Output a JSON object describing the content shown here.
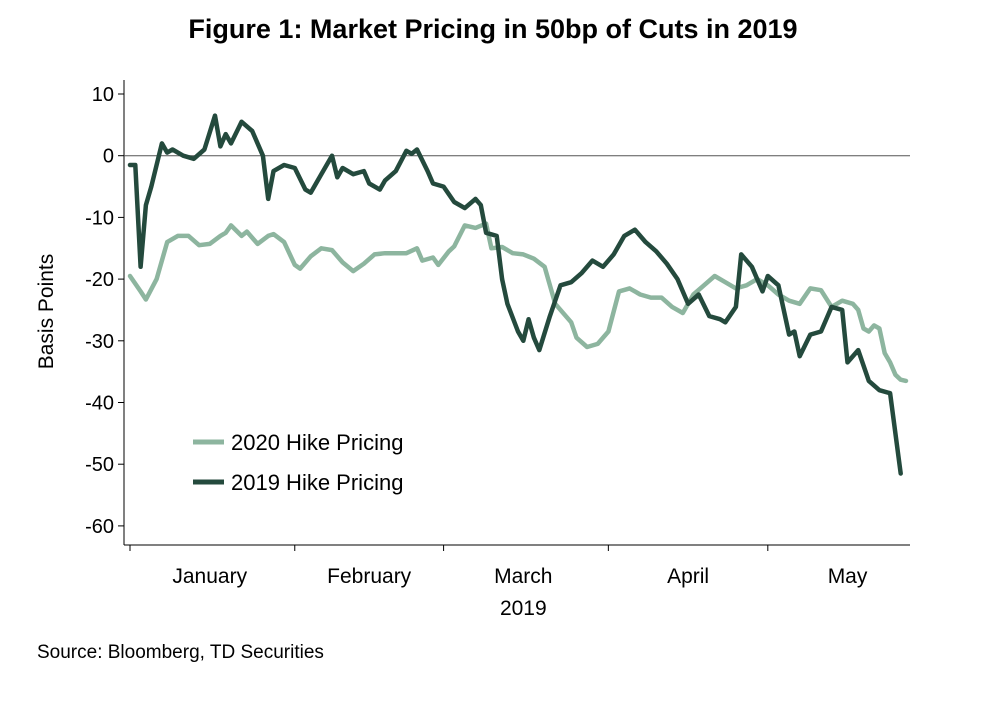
{
  "chart_data": {
    "type": "line",
    "title": "Figure 1: Market Pricing in 50bp of Cuts in 2019",
    "ylabel": "Basis Points",
    "xlabel": "2019",
    "ylim": [
      -62,
      12
    ],
    "yticks": [
      10,
      0,
      -10,
      -20,
      -30,
      -40,
      -50,
      -60
    ],
    "xlim": [
      "2019-01-01",
      "2019-05-27"
    ],
    "x_tick_dates": [
      "2019-01-01",
      "2019-02-01",
      "2019-03-01",
      "2019-04-01",
      "2019-05-01"
    ],
    "month_labels": [
      {
        "label": "January",
        "date": "2019-01-16"
      },
      {
        "label": "February",
        "date": "2019-02-15"
      },
      {
        "label": "March",
        "date": "2019-03-16"
      },
      {
        "label": "April",
        "date": "2019-04-16"
      },
      {
        "label": "May",
        "date": "2019-05-16"
      }
    ],
    "zero_line": 0,
    "grid": false,
    "legend_position": "bottom-left",
    "series": [
      {
        "name": "2020 Hike Pricing",
        "color": "#8db59f",
        "points": [
          [
            "2019-01-01",
            -19.5
          ],
          [
            "2019-01-03",
            -22
          ],
          [
            "2019-01-04",
            -23.3
          ],
          [
            "2019-01-06",
            -20
          ],
          [
            "2019-01-08",
            -14
          ],
          [
            "2019-01-10",
            -13
          ],
          [
            "2019-01-12",
            -13
          ],
          [
            "2019-01-14",
            -14.5
          ],
          [
            "2019-01-16",
            -14.3
          ],
          [
            "2019-01-18",
            -13
          ],
          [
            "2019-01-19",
            -12.5
          ],
          [
            "2019-01-20",
            -11.3
          ],
          [
            "2019-01-22",
            -13
          ],
          [
            "2019-01-23",
            -12.3
          ],
          [
            "2019-01-25",
            -14.3
          ],
          [
            "2019-01-27",
            -13
          ],
          [
            "2019-01-28",
            -12.7
          ],
          [
            "2019-01-30",
            -14
          ],
          [
            "2019-02-01",
            -17.7
          ],
          [
            "2019-02-02",
            -18.3
          ],
          [
            "2019-02-04",
            -16.3
          ],
          [
            "2019-02-06",
            -15
          ],
          [
            "2019-02-08",
            -15.3
          ],
          [
            "2019-02-10",
            -17.3
          ],
          [
            "2019-02-12",
            -18.7
          ],
          [
            "2019-02-14",
            -17.5
          ],
          [
            "2019-02-16",
            -16
          ],
          [
            "2019-02-18",
            -15.8
          ],
          [
            "2019-02-20",
            -15.8
          ],
          [
            "2019-02-22",
            -15.8
          ],
          [
            "2019-02-24",
            -15
          ],
          [
            "2019-02-25",
            -17
          ],
          [
            "2019-02-27",
            -16.5
          ],
          [
            "2019-02-28",
            -17.7
          ],
          [
            "2019-03-02",
            -15.5
          ],
          [
            "2019-03-03",
            -14.7
          ],
          [
            "2019-03-05",
            -11.3
          ],
          [
            "2019-03-07",
            -11.7
          ],
          [
            "2019-03-09",
            -11
          ],
          [
            "2019-03-10",
            -15
          ],
          [
            "2019-03-12",
            -14.8
          ],
          [
            "2019-03-14",
            -15.8
          ],
          [
            "2019-03-16",
            -16
          ],
          [
            "2019-03-18",
            -16.7
          ],
          [
            "2019-03-20",
            -18
          ],
          [
            "2019-03-22",
            -24
          ],
          [
            "2019-03-25",
            -27
          ],
          [
            "2019-03-26",
            -29.5
          ],
          [
            "2019-03-28",
            -31
          ],
          [
            "2019-03-30",
            -30.5
          ],
          [
            "2019-04-01",
            -28.5
          ],
          [
            "2019-04-03",
            -22
          ],
          [
            "2019-04-05",
            -21.5
          ],
          [
            "2019-04-07",
            -22.5
          ],
          [
            "2019-04-09",
            -23
          ],
          [
            "2019-04-11",
            -23
          ],
          [
            "2019-04-13",
            -24.5
          ],
          [
            "2019-04-15",
            -25.5
          ],
          [
            "2019-04-17",
            -22.5
          ],
          [
            "2019-04-19",
            -21
          ],
          [
            "2019-04-21",
            -19.5
          ],
          [
            "2019-04-23",
            -20.5
          ],
          [
            "2019-04-25",
            -21.5
          ],
          [
            "2019-04-27",
            -21
          ],
          [
            "2019-04-29",
            -20
          ],
          [
            "2019-05-01",
            -21
          ],
          [
            "2019-05-03",
            -22.5
          ],
          [
            "2019-05-05",
            -23.5
          ],
          [
            "2019-05-07",
            -24
          ],
          [
            "2019-05-09",
            -21.5
          ],
          [
            "2019-05-11",
            -21.8
          ],
          [
            "2019-05-13",
            -24.5
          ],
          [
            "2019-05-15",
            -23.5
          ],
          [
            "2019-05-17",
            -24
          ],
          [
            "2019-05-18",
            -25
          ],
          [
            "2019-05-19",
            -28
          ],
          [
            "2019-05-20",
            -28.5
          ],
          [
            "2019-05-21",
            -27.5
          ],
          [
            "2019-05-22",
            -28
          ],
          [
            "2019-05-23",
            -32
          ],
          [
            "2019-05-24",
            -33.5
          ],
          [
            "2019-05-25",
            -35.5
          ],
          [
            "2019-05-26",
            -36.3
          ],
          [
            "2019-05-27",
            -36.5
          ]
        ]
      },
      {
        "name": "2019 Hike Pricing",
        "color": "#244a3d",
        "points": [
          [
            "2019-01-01",
            -1.5
          ],
          [
            "2019-01-02",
            -1.5
          ],
          [
            "2019-01-03",
            -18
          ],
          [
            "2019-01-04",
            -8
          ],
          [
            "2019-01-05",
            -5
          ],
          [
            "2019-01-07",
            2
          ],
          [
            "2019-01-08",
            0.5
          ],
          [
            "2019-01-09",
            1
          ],
          [
            "2019-01-11",
            0
          ],
          [
            "2019-01-13",
            -0.5
          ],
          [
            "2019-01-15",
            1
          ],
          [
            "2019-01-17",
            6.5
          ],
          [
            "2019-01-18",
            1.5
          ],
          [
            "2019-01-19",
            3.5
          ],
          [
            "2019-01-20",
            2
          ],
          [
            "2019-01-22",
            5.5
          ],
          [
            "2019-01-24",
            4
          ],
          [
            "2019-01-26",
            0
          ],
          [
            "2019-01-27",
            -7
          ],
          [
            "2019-01-28",
            -2.5
          ],
          [
            "2019-01-30",
            -1.5
          ],
          [
            "2019-02-01",
            -2
          ],
          [
            "2019-02-03",
            -5.5
          ],
          [
            "2019-02-04",
            -6
          ],
          [
            "2019-02-06",
            -3
          ],
          [
            "2019-02-08",
            0
          ],
          [
            "2019-02-09",
            -3.5
          ],
          [
            "2019-02-10",
            -2
          ],
          [
            "2019-02-12",
            -3
          ],
          [
            "2019-02-14",
            -2.5
          ],
          [
            "2019-02-15",
            -4.5
          ],
          [
            "2019-02-17",
            -5.5
          ],
          [
            "2019-02-18",
            -4
          ],
          [
            "2019-02-20",
            -2.5
          ],
          [
            "2019-02-22",
            0.8
          ],
          [
            "2019-02-23",
            0.3
          ],
          [
            "2019-02-24",
            1
          ],
          [
            "2019-02-26",
            -2.5
          ],
          [
            "2019-02-27",
            -4.5
          ],
          [
            "2019-03-01",
            -5
          ],
          [
            "2019-03-03",
            -7.5
          ],
          [
            "2019-03-05",
            -8.5
          ],
          [
            "2019-03-07",
            -7
          ],
          [
            "2019-03-08",
            -8
          ],
          [
            "2019-03-09",
            -12.5
          ],
          [
            "2019-03-11",
            -13
          ],
          [
            "2019-03-12",
            -20
          ],
          [
            "2019-03-13",
            -24
          ],
          [
            "2019-03-15",
            -28.5
          ],
          [
            "2019-03-16",
            -30
          ],
          [
            "2019-03-17",
            -26.5
          ],
          [
            "2019-03-18",
            -29.5
          ],
          [
            "2019-03-19",
            -31.5
          ],
          [
            "2019-03-21",
            -26
          ],
          [
            "2019-03-23",
            -21
          ],
          [
            "2019-03-25",
            -20.5
          ],
          [
            "2019-03-27",
            -19
          ],
          [
            "2019-03-29",
            -17
          ],
          [
            "2019-03-31",
            -18
          ],
          [
            "2019-04-02",
            -16
          ],
          [
            "2019-04-04",
            -13
          ],
          [
            "2019-04-06",
            -12
          ],
          [
            "2019-04-08",
            -14
          ],
          [
            "2019-04-10",
            -15.5
          ],
          [
            "2019-04-12",
            -17.5
          ],
          [
            "2019-04-14",
            -20
          ],
          [
            "2019-04-16",
            -24
          ],
          [
            "2019-04-18",
            -22.5
          ],
          [
            "2019-04-20",
            -26
          ],
          [
            "2019-04-22",
            -26.5
          ],
          [
            "2019-04-23",
            -27
          ],
          [
            "2019-04-25",
            -24.5
          ],
          [
            "2019-04-26",
            -16
          ],
          [
            "2019-04-28",
            -18
          ],
          [
            "2019-04-30",
            -22
          ],
          [
            "2019-05-01",
            -19.5
          ],
          [
            "2019-05-03",
            -21
          ],
          [
            "2019-05-05",
            -29
          ],
          [
            "2019-05-06",
            -28.5
          ],
          [
            "2019-05-07",
            -32.5
          ],
          [
            "2019-05-09",
            -29
          ],
          [
            "2019-05-11",
            -28.5
          ],
          [
            "2019-05-13",
            -24.5
          ],
          [
            "2019-05-15",
            -25
          ],
          [
            "2019-05-16",
            -33.5
          ],
          [
            "2019-05-18",
            -31.5
          ],
          [
            "2019-05-20",
            -36.5
          ],
          [
            "2019-05-22",
            -38
          ],
          [
            "2019-05-24",
            -38.5
          ],
          [
            "2019-05-26",
            -51.5
          ]
        ]
      }
    ]
  },
  "source_note": "Source: Bloomberg, TD Securities"
}
